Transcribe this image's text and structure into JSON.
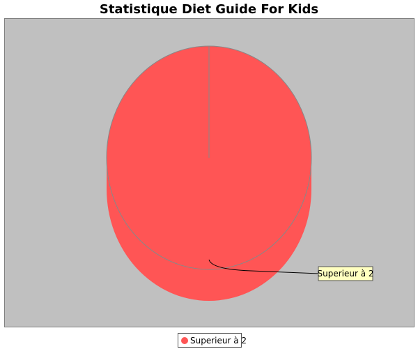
{
  "chart_data": {
    "type": "pie",
    "style": "3d",
    "title": "Statistique Diet Guide For Kids",
    "labels": [
      "Superieur à 2"
    ],
    "values": [
      100
    ],
    "colors": [
      "#ff5555"
    ],
    "legend": {
      "position": "bottom",
      "entries": [
        "Superieur à 2"
      ]
    },
    "plot_background": "#c0c0c0"
  }
}
